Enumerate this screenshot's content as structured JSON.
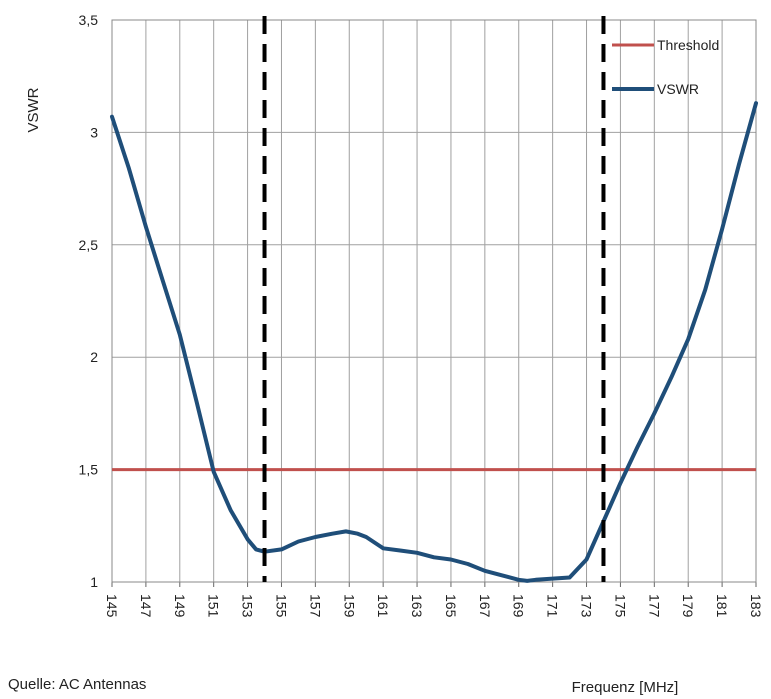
{
  "chart_data": {
    "type": "line",
    "title": "",
    "xlabel": "Frequenz [MHz]",
    "ylabel": "VSWR",
    "source": "Quelle: AC Antennas",
    "xlim": [
      145,
      183
    ],
    "ylim": [
      1,
      3.5
    ],
    "x_ticks": [
      "145",
      "147",
      "149",
      "151",
      "153",
      "155",
      "157",
      "159",
      "161",
      "163",
      "165",
      "167",
      "169",
      "171",
      "173",
      "175",
      "177",
      "179",
      "181",
      "183"
    ],
    "y_ticks": [
      "1",
      "1,5",
      "2",
      "2,5",
      "3",
      "3,5"
    ],
    "y_tick_values": [
      1,
      1.5,
      2,
      2.5,
      3,
      3.5
    ],
    "grid": true,
    "legend_position": "top-right",
    "colors": {
      "threshold": "#c0504d",
      "vswr": "#1f4e79",
      "marker": "#000000",
      "grid": "#a0a0a0"
    },
    "series": [
      {
        "name": "Threshold",
        "x": [
          145,
          183
        ],
        "y": [
          1.5,
          1.5
        ]
      },
      {
        "name": "VSWR",
        "x": [
          145,
          146,
          147,
          148,
          149,
          150,
          151,
          152,
          153,
          153.5,
          154,
          155,
          156,
          157,
          158,
          158.8,
          159.5,
          160,
          161,
          162,
          163,
          164,
          165,
          166,
          167,
          168,
          169,
          169.5,
          170,
          171,
          172,
          173,
          174,
          175,
          176,
          177,
          178,
          179,
          180,
          181,
          182,
          183
        ],
        "y": [
          3.07,
          2.84,
          2.58,
          2.34,
          2.1,
          1.8,
          1.49,
          1.32,
          1.19,
          1.145,
          1.135,
          1.145,
          1.18,
          1.2,
          1.215,
          1.225,
          1.215,
          1.2,
          1.15,
          1.14,
          1.13,
          1.11,
          1.1,
          1.08,
          1.05,
          1.03,
          1.01,
          1.005,
          1.01,
          1.015,
          1.02,
          1.1,
          1.27,
          1.44,
          1.6,
          1.75,
          1.91,
          2.08,
          2.3,
          2.57,
          2.86,
          3.13
        ]
      }
    ],
    "markers": [
      154,
      174
    ]
  }
}
